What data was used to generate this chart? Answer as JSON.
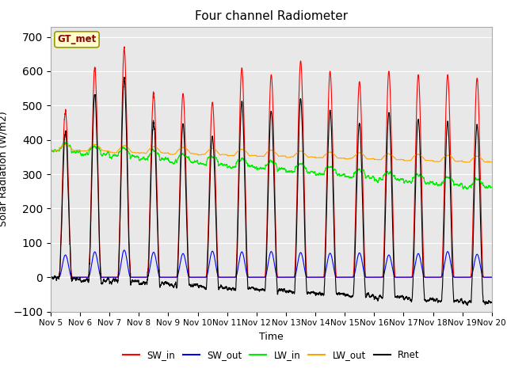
{
  "title": "Four channel Radiometer",
  "xlabel": "Time",
  "ylabel": "Solar Radiation (W/m2)",
  "annotation": "GT_met",
  "ylim": [
    -100,
    730
  ],
  "xlim": [
    0,
    15
  ],
  "xtick_labels": [
    "Nov 5",
    "Nov 6",
    "Nov 7",
    "Nov 8",
    "Nov 9",
    "Nov 10",
    "Nov 11",
    "Nov 12",
    "Nov 13",
    "Nov 14",
    "Nov 15",
    "Nov 16",
    "Nov 17",
    "Nov 18",
    "Nov 19",
    "Nov 20"
  ],
  "background_color": "#e8e8e8",
  "colors": {
    "SW_in": "#ff0000",
    "SW_out": "#0000ff",
    "LW_in": "#00ee00",
    "LW_out": "#ffa500",
    "Rnet": "#000000"
  },
  "num_days": 15,
  "lw": 0.8,
  "sw_in_peaks": [
    490,
    610,
    670,
    535,
    535,
    510,
    610,
    590,
    630,
    600,
    570,
    600,
    590,
    590,
    580
  ]
}
